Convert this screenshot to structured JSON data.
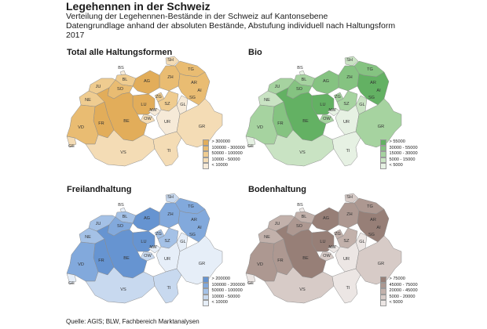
{
  "title": "Legehennen in der Schweiz",
  "subtitle_lines": [
    "Verteilung der Legehennen-Bestände in der Schweiz auf Kantonsebene",
    "Datengrundlage anhand der absoluten Bestände, Abstufung individuell nach Haltungsform",
    "2017"
  ],
  "source": "Quelle: AGIS; BLW, Fachbereich Marktanalysen",
  "canton_codes": [
    "SH",
    "BS",
    "BL",
    "TG",
    "ZH",
    "AG",
    "AR",
    "AI",
    "JU",
    "SO",
    "LU",
    "ZG",
    "SG",
    "NE",
    "BE",
    "NW",
    "SZ",
    "GL",
    "OW",
    "UR",
    "FR",
    "VD",
    "GR",
    "GE",
    "VS",
    "TI"
  ],
  "maps": [
    {
      "key": "total",
      "title": "Total alle Haltungsformen",
      "palette": [
        "#f6ead8",
        "#f4dcb5",
        "#efcc90",
        "#e9bc72",
        "#e2ad5a"
      ],
      "legend": [
        "> 300000",
        "100000 - 300000",
        "50000 - 100000",
        "10000 - 50000",
        "< 10000"
      ],
      "classes": {
        "SH": 1,
        "BS": 0,
        "BL": 2,
        "TG": 3,
        "ZH": 3,
        "AG": 4,
        "AR": 1,
        "AI": 1,
        "JU": 2,
        "SO": 3,
        "LU": 4,
        "ZG": 2,
        "SG": 3,
        "NE": 2,
        "BE": 4,
        "NW": 0,
        "SZ": 2,
        "GL": 0,
        "OW": 1,
        "UR": 0,
        "FR": 4,
        "VD": 3,
        "GR": 1,
        "GE": 1,
        "VS": 1,
        "TI": 1
      }
    },
    {
      "key": "bio",
      "title": "Bio",
      "palette": [
        "#e6f1e3",
        "#c9e3c3",
        "#a6d3a0",
        "#85c381",
        "#63b163"
      ],
      "legend": [
        "> 55000",
        "30000 - 55000",
        "15000 - 30000",
        "5000 - 15000",
        "< 5000"
      ],
      "classes": {
        "SH": 1,
        "BS": 0,
        "BL": 2,
        "TG": 3,
        "ZH": 3,
        "AG": 3,
        "AR": 2,
        "AI": 1,
        "JU": 2,
        "SO": 3,
        "LU": 4,
        "ZG": 2,
        "SG": 4,
        "NE": 1,
        "BE": 4,
        "NW": 0,
        "SZ": 2,
        "GL": 1,
        "OW": 2,
        "UR": 0,
        "FR": 3,
        "VD": 2,
        "GR": 2,
        "GE": 0,
        "VS": 1,
        "TI": 0
      }
    },
    {
      "key": "freiland",
      "title": "Freilandhaltung",
      "palette": [
        "#e6eef8",
        "#c8d9ef",
        "#a4c1e6",
        "#82a9dc",
        "#6694d1"
      ],
      "legend": [
        "> 200000",
        "100000 - 200000",
        "50000 - 100000",
        "10000 - 50000",
        "< 10000"
      ],
      "classes": {
        "SH": 1,
        "BS": 0,
        "BL": 2,
        "TG": 3,
        "ZH": 3,
        "AG": 4,
        "AR": 1,
        "AI": 1,
        "JU": 2,
        "SO": 3,
        "LU": 4,
        "ZG": 2,
        "SG": 3,
        "NE": 2,
        "BE": 4,
        "NW": 0,
        "SZ": 2,
        "GL": 0,
        "OW": 1,
        "UR": 0,
        "FR": 4,
        "VD": 3,
        "GR": 0,
        "GE": 0,
        "VS": 1,
        "TI": 1
      }
    },
    {
      "key": "boden",
      "title": "Bodenhaltung",
      "palette": [
        "#ece6e4",
        "#d7cbc7",
        "#c2b1ab",
        "#ad9891",
        "#977f77"
      ],
      "legend": [
        "> 75000",
        "45000 - 75000",
        "20000 - 45000",
        "5000 - 20000",
        "< 5000"
      ],
      "classes": {
        "SH": 1,
        "BS": 0,
        "BL": 2,
        "TG": 3,
        "ZH": 3,
        "AG": 4,
        "AR": 2,
        "AI": 1,
        "JU": 2,
        "SO": 3,
        "LU": 4,
        "ZG": 2,
        "SG": 4,
        "NE": 2,
        "BE": 4,
        "NW": 0,
        "SZ": 2,
        "GL": 0,
        "OW": 1,
        "UR": 0,
        "FR": 3,
        "VD": 3,
        "GR": 1,
        "GE": 0,
        "VS": 1,
        "TI": 0
      }
    }
  ]
}
